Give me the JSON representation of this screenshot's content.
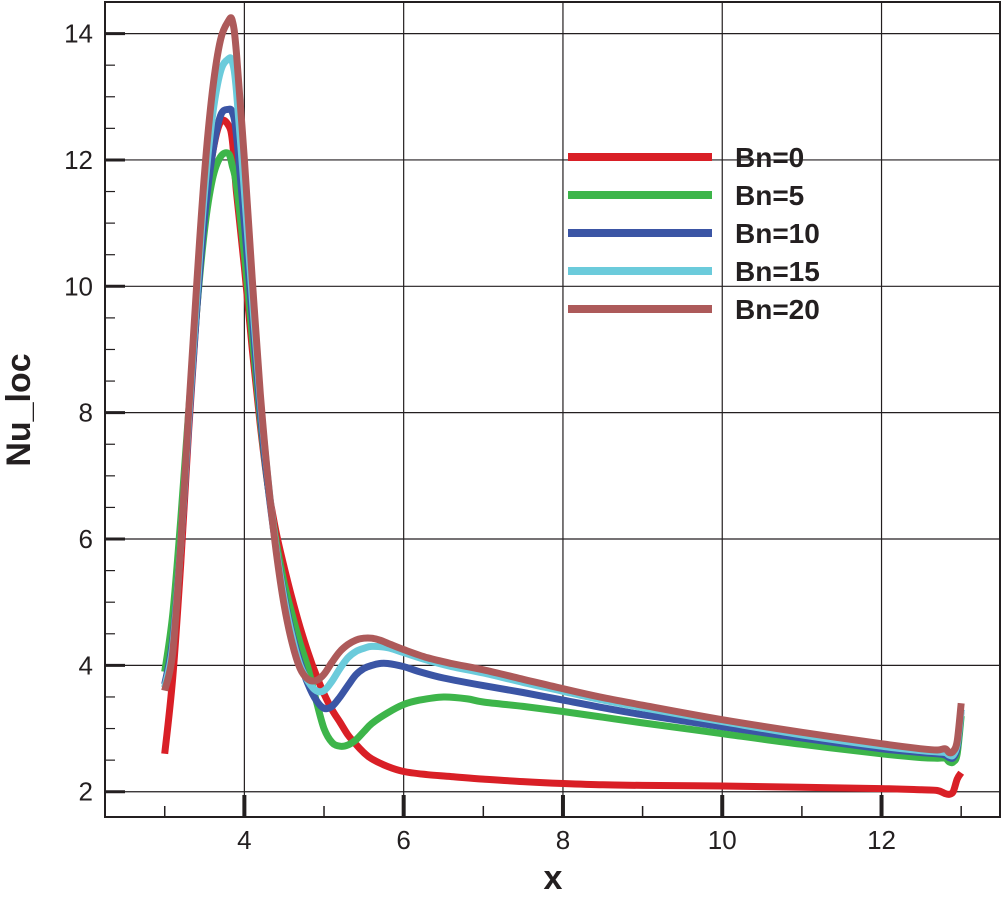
{
  "chart_data": {
    "type": "line",
    "xlabel": "x",
    "ylabel": "Nu_loc",
    "xlim": [
      2.25,
      13.5
    ],
    "ylim": [
      1.6,
      14.5
    ],
    "x_ticks": [
      4,
      6,
      8,
      10,
      12
    ],
    "y_ticks": [
      2,
      4,
      6,
      8,
      10,
      12,
      14
    ],
    "grid": true,
    "legend_position": "top-right",
    "series": [
      {
        "name": "Bn=0",
        "color": "#d91f26",
        "x": [
          3.0,
          3.1,
          3.2,
          3.3,
          3.4,
          3.5,
          3.6,
          3.7,
          3.8,
          3.85,
          3.9,
          4.0,
          4.1,
          4.2,
          4.3,
          4.4,
          4.5,
          4.6,
          4.7,
          4.8,
          4.9,
          5.0,
          5.1,
          5.2,
          5.3,
          5.4,
          5.5,
          5.6,
          5.8,
          6.0,
          6.3,
          6.6,
          7.0,
          7.5,
          8.0,
          8.5,
          9.0,
          10.0,
          11.0,
          12.0,
          12.5,
          12.7,
          12.8,
          12.85,
          12.9,
          12.95,
          13.0
        ],
        "y": [
          2.6,
          3.8,
          5.6,
          7.7,
          9.6,
          11.1,
          12.1,
          12.6,
          12.55,
          12.3,
          11.5,
          10.3,
          9.0,
          7.8,
          6.8,
          6.1,
          5.55,
          5.05,
          4.6,
          4.2,
          3.85,
          3.55,
          3.3,
          3.1,
          2.9,
          2.75,
          2.62,
          2.52,
          2.4,
          2.32,
          2.27,
          2.24,
          2.2,
          2.16,
          2.13,
          2.11,
          2.1,
          2.09,
          2.07,
          2.05,
          2.03,
          2.02,
          1.97,
          1.96,
          2.0,
          2.2,
          2.3
        ]
      },
      {
        "name": "Bn=5",
        "color": "#3db54a",
        "x": [
          3.0,
          3.1,
          3.2,
          3.3,
          3.4,
          3.5,
          3.6,
          3.7,
          3.8,
          3.85,
          3.9,
          4.0,
          4.1,
          4.2,
          4.3,
          4.4,
          4.5,
          4.6,
          4.7,
          4.8,
          4.9,
          5.0,
          5.1,
          5.2,
          5.3,
          5.4,
          5.5,
          5.6,
          5.8,
          6.0,
          6.2,
          6.5,
          6.8,
          7.0,
          7.5,
          8.0,
          8.5,
          9.0,
          10.0,
          11.0,
          12.0,
          12.5,
          12.7,
          12.8,
          12.85,
          12.9,
          12.95,
          13.0
        ],
        "y": [
          3.9,
          4.8,
          6.3,
          8.0,
          9.6,
          10.9,
          11.7,
          12.05,
          12.1,
          11.9,
          11.6,
          10.5,
          9.2,
          7.9,
          6.8,
          5.95,
          5.3,
          4.8,
          4.35,
          3.95,
          3.45,
          3.0,
          2.78,
          2.72,
          2.74,
          2.82,
          2.95,
          3.08,
          3.25,
          3.38,
          3.45,
          3.5,
          3.47,
          3.42,
          3.35,
          3.27,
          3.18,
          3.09,
          2.92,
          2.75,
          2.6,
          2.54,
          2.53,
          2.53,
          2.47,
          2.47,
          2.6,
          3.2
        ]
      },
      {
        "name": "Bn=10",
        "color": "#3b55a5",
        "x": [
          3.0,
          3.1,
          3.2,
          3.3,
          3.4,
          3.5,
          3.6,
          3.7,
          3.8,
          3.85,
          3.9,
          4.0,
          4.1,
          4.2,
          4.3,
          4.4,
          4.5,
          4.6,
          4.7,
          4.8,
          4.9,
          5.0,
          5.1,
          5.2,
          5.3,
          5.4,
          5.5,
          5.6,
          5.7,
          5.8,
          6.0,
          6.2,
          6.5,
          7.0,
          7.5,
          8.0,
          8.5,
          9.0,
          10.0,
          11.0,
          12.0,
          12.5,
          12.7,
          12.8,
          12.85,
          12.9,
          12.95,
          13.0
        ],
        "y": [
          3.7,
          4.4,
          5.9,
          7.8,
          9.6,
          11.1,
          12.1,
          12.7,
          12.8,
          12.75,
          12.4,
          11.0,
          9.5,
          8.0,
          6.8,
          5.85,
          5.1,
          4.5,
          4.05,
          3.7,
          3.45,
          3.32,
          3.35,
          3.5,
          3.68,
          3.85,
          3.95,
          4.0,
          4.03,
          4.03,
          3.98,
          3.9,
          3.8,
          3.68,
          3.57,
          3.45,
          3.33,
          3.22,
          3.03,
          2.85,
          2.68,
          2.62,
          2.6,
          2.58,
          2.54,
          2.54,
          2.7,
          3.3
        ]
      },
      {
        "name": "Bn=15",
        "color": "#6bcbdb",
        "x": [
          3.0,
          3.1,
          3.2,
          3.3,
          3.4,
          3.5,
          3.6,
          3.7,
          3.8,
          3.85,
          3.9,
          4.0,
          4.1,
          4.2,
          4.3,
          4.4,
          4.5,
          4.6,
          4.7,
          4.8,
          4.9,
          5.0,
          5.1,
          5.2,
          5.3,
          5.4,
          5.5,
          5.6,
          5.8,
          6.0,
          6.3,
          6.6,
          7.0,
          7.5,
          8.0,
          8.5,
          9.0,
          10.0,
          11.0,
          12.0,
          12.5,
          12.7,
          12.8,
          12.85,
          12.9,
          12.95,
          13.0
        ],
        "y": [
          3.65,
          4.3,
          5.9,
          7.9,
          9.8,
          11.5,
          12.7,
          13.4,
          13.6,
          13.55,
          13.1,
          11.5,
          9.8,
          8.2,
          6.9,
          5.85,
          5.05,
          4.45,
          4.0,
          3.75,
          3.6,
          3.6,
          3.75,
          3.95,
          4.12,
          4.22,
          4.27,
          4.3,
          4.28,
          4.2,
          4.08,
          3.98,
          3.88,
          3.73,
          3.59,
          3.45,
          3.33,
          3.11,
          2.9,
          2.72,
          2.65,
          2.63,
          2.62,
          2.58,
          2.58,
          2.75,
          3.3
        ]
      },
      {
        "name": "Bn=20",
        "color": "#ad5a5a",
        "x": [
          3.0,
          3.1,
          3.2,
          3.3,
          3.4,
          3.5,
          3.6,
          3.7,
          3.8,
          3.85,
          3.9,
          4.0,
          4.1,
          4.2,
          4.3,
          4.4,
          4.5,
          4.6,
          4.7,
          4.8,
          4.9,
          5.0,
          5.1,
          5.2,
          5.3,
          5.4,
          5.5,
          5.6,
          5.7,
          5.8,
          6.0,
          6.3,
          6.6,
          7.0,
          7.5,
          8.0,
          8.5,
          9.0,
          10.0,
          11.0,
          12.0,
          12.5,
          12.7,
          12.8,
          12.85,
          12.9,
          12.95,
          13.0
        ],
        "y": [
          3.6,
          4.2,
          5.9,
          8.0,
          10.0,
          11.8,
          13.1,
          13.9,
          14.2,
          14.2,
          13.7,
          12.0,
          10.1,
          8.3,
          6.9,
          5.8,
          4.95,
          4.35,
          3.95,
          3.78,
          3.76,
          3.86,
          4.05,
          4.22,
          4.33,
          4.4,
          4.43,
          4.43,
          4.4,
          4.35,
          4.25,
          4.12,
          4.03,
          3.93,
          3.78,
          3.63,
          3.49,
          3.37,
          3.14,
          2.94,
          2.76,
          2.68,
          2.66,
          2.68,
          2.62,
          2.64,
          2.8,
          3.4
        ]
      }
    ]
  }
}
